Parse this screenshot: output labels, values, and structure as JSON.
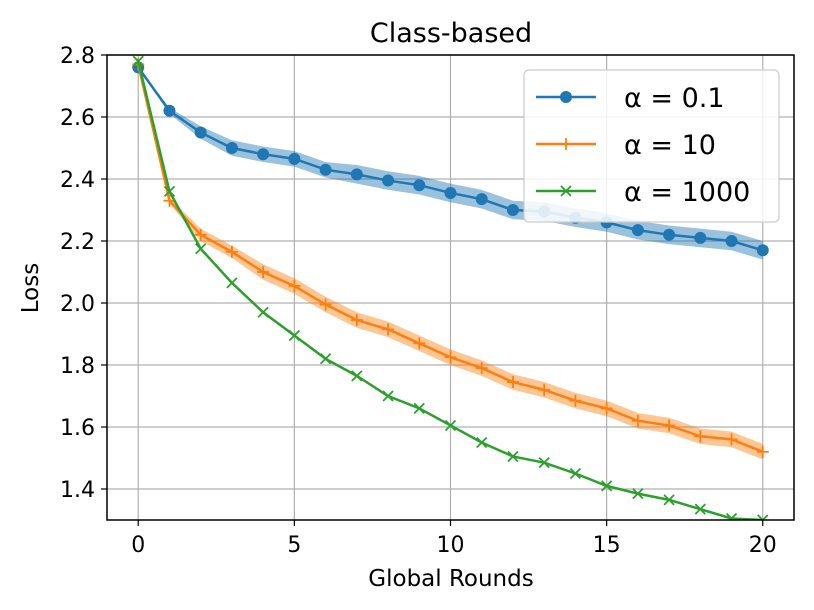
{
  "chart_data": {
    "type": "line",
    "title": "Class-based",
    "xlabel": "Global Rounds",
    "ylabel": "Loss",
    "xlim": [
      -1.0,
      21.0
    ],
    "ylim": [
      1.3,
      2.8
    ],
    "xticks": [
      0,
      5,
      10,
      15,
      20
    ],
    "yticks": [
      1.4,
      1.6,
      1.8,
      2.0,
      2.2,
      2.4,
      2.6,
      2.8
    ],
    "xtick_labels": [
      "0",
      "5",
      "10",
      "15",
      "20"
    ],
    "ytick_labels": [
      "1.4",
      "1.6",
      "1.8",
      "2.0",
      "2.2",
      "2.4",
      "2.6",
      "2.8"
    ],
    "grid": true,
    "legend_position": "top-right",
    "x": [
      0,
      1,
      2,
      3,
      4,
      5,
      6,
      7,
      8,
      9,
      10,
      11,
      12,
      13,
      14,
      15,
      16,
      17,
      18,
      19,
      20
    ],
    "series": [
      {
        "name": "α = 0.1",
        "color": "#1f77b4",
        "marker": "circle",
        "values": [
          2.76,
          2.62,
          2.55,
          2.5,
          2.48,
          2.465,
          2.43,
          2.415,
          2.395,
          2.38,
          2.355,
          2.335,
          2.3,
          2.295,
          2.275,
          2.26,
          2.235,
          2.22,
          2.21,
          2.2,
          2.17
        ],
        "band": [
          0.0,
          0.01,
          0.02,
          0.025,
          0.025,
          0.025,
          0.025,
          0.03,
          0.03,
          0.03,
          0.03,
          0.03,
          0.03,
          0.03,
          0.03,
          0.03,
          0.03,
          0.03,
          0.03,
          0.03,
          0.03
        ]
      },
      {
        "name": "α = 10",
        "color": "#ff7f0e",
        "marker": "plus",
        "values": [
          2.77,
          2.33,
          2.22,
          2.165,
          2.1,
          2.055,
          1.995,
          1.945,
          1.915,
          1.87,
          1.825,
          1.79,
          1.745,
          1.72,
          1.685,
          1.66,
          1.62,
          1.605,
          1.57,
          1.56,
          1.52
        ],
        "band": [
          0.0,
          0.01,
          0.02,
          0.02,
          0.025,
          0.025,
          0.025,
          0.025,
          0.025,
          0.025,
          0.025,
          0.025,
          0.025,
          0.025,
          0.025,
          0.025,
          0.025,
          0.025,
          0.025,
          0.025,
          0.025
        ]
      },
      {
        "name": "α = 1000",
        "color": "#2ca02c",
        "marker": "x",
        "values": [
          2.78,
          2.36,
          2.175,
          2.065,
          1.97,
          1.895,
          1.82,
          1.765,
          1.7,
          1.66,
          1.605,
          1.55,
          1.505,
          1.485,
          1.45,
          1.41,
          1.385,
          1.365,
          1.335,
          1.305,
          1.3
        ],
        "band": [
          0,
          0,
          0,
          0,
          0,
          0,
          0,
          0,
          0,
          0,
          0,
          0,
          0,
          0,
          0,
          0,
          0,
          0,
          0,
          0,
          0
        ]
      }
    ]
  }
}
